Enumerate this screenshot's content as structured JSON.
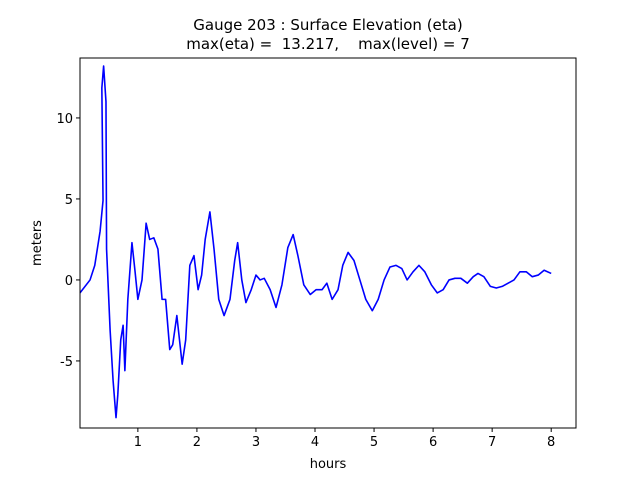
{
  "chart_data": {
    "type": "line",
    "title": "Gauge 203 : Surface Elevation (eta)",
    "subtitle": "max(eta) =  13.217,    max(level) = 7",
    "x_label": "hours",
    "y_label": "meters",
    "xlim": [
      0.02,
      8.42
    ],
    "ylim": [
      -9.14,
      13.7
    ],
    "xticks": [
      1,
      2,
      3,
      4,
      5,
      6,
      7,
      8
    ],
    "yticks": [
      -5,
      0,
      5,
      10
    ],
    "grid": false,
    "series": [
      {
        "color": "#0000ff",
        "x": [
          0.02,
          0.19,
          0.27,
          0.36,
          0.41,
          0.39,
          0.42,
          0.46,
          0.47,
          0.53,
          0.58,
          0.63,
          0.66,
          0.71,
          0.75,
          0.78,
          0.83,
          0.9,
          0.95,
          1.0,
          1.07,
          1.14,
          1.2,
          1.27,
          1.34,
          1.41,
          1.47,
          1.54,
          1.59,
          1.66,
          1.75,
          1.81,
          1.88,
          1.95,
          2.02,
          2.08,
          2.14,
          2.22,
          2.29,
          2.37,
          2.46,
          2.56,
          2.64,
          2.69,
          2.76,
          2.83,
          2.92,
          3.0,
          3.07,
          3.14,
          3.24,
          3.34,
          3.44,
          3.54,
          3.63,
          3.71,
          3.81,
          3.92,
          4.02,
          4.12,
          4.2,
          4.29,
          4.39,
          4.47,
          4.56,
          4.66,
          4.76,
          4.86,
          4.97,
          5.07,
          5.17,
          5.27,
          5.37,
          5.47,
          5.56,
          5.66,
          5.76,
          5.86,
          5.97,
          6.07,
          6.17,
          6.27,
          6.37,
          6.47,
          6.58,
          6.68,
          6.76,
          6.86,
          6.97,
          7.07,
          7.17,
          7.27,
          7.37,
          7.47,
          7.58,
          7.68,
          7.78,
          7.88,
          8.0
        ],
        "values": [
          -0.8,
          0,
          0.9,
          3,
          4.9,
          11.85,
          13.2,
          11,
          1.9,
          -3.1,
          -6.2,
          -8.5,
          -7.1,
          -3.7,
          -2.8,
          -5.6,
          -1.2,
          2.3,
          0.6,
          -1.2,
          0,
          3.5,
          2.5,
          2.6,
          1.9,
          -1.2,
          -1.2,
          -4.3,
          -4.0,
          -2.2,
          -5.2,
          -3.7,
          0.9,
          1.5,
          -0.6,
          0.3,
          2.5,
          4.2,
          1.9,
          -1.2,
          -2.2,
          -1.2,
          1.2,
          2.3,
          0,
          -1.4,
          -0.6,
          0.3,
          0,
          0.1,
          -0.6,
          -1.7,
          -0.3,
          2.0,
          2.8,
          1.5,
          -0.3,
          -0.9,
          -0.6,
          -0.6,
          -0.2,
          -1.2,
          -0.6,
          0.9,
          1.7,
          1.2,
          0,
          -1.2,
          -1.9,
          -1.2,
          0,
          0.8,
          0.9,
          0.7,
          0,
          0.5,
          0.9,
          0.5,
          -0.3,
          -0.8,
          -0.6,
          0,
          0.1,
          0.1,
          -0.2,
          0.2,
          0.4,
          0.2,
          -0.4,
          -0.5,
          -0.4,
          -0.2,
          0,
          0.5,
          0.5,
          0.2,
          0.3,
          0.6,
          0.4
        ]
      }
    ]
  }
}
